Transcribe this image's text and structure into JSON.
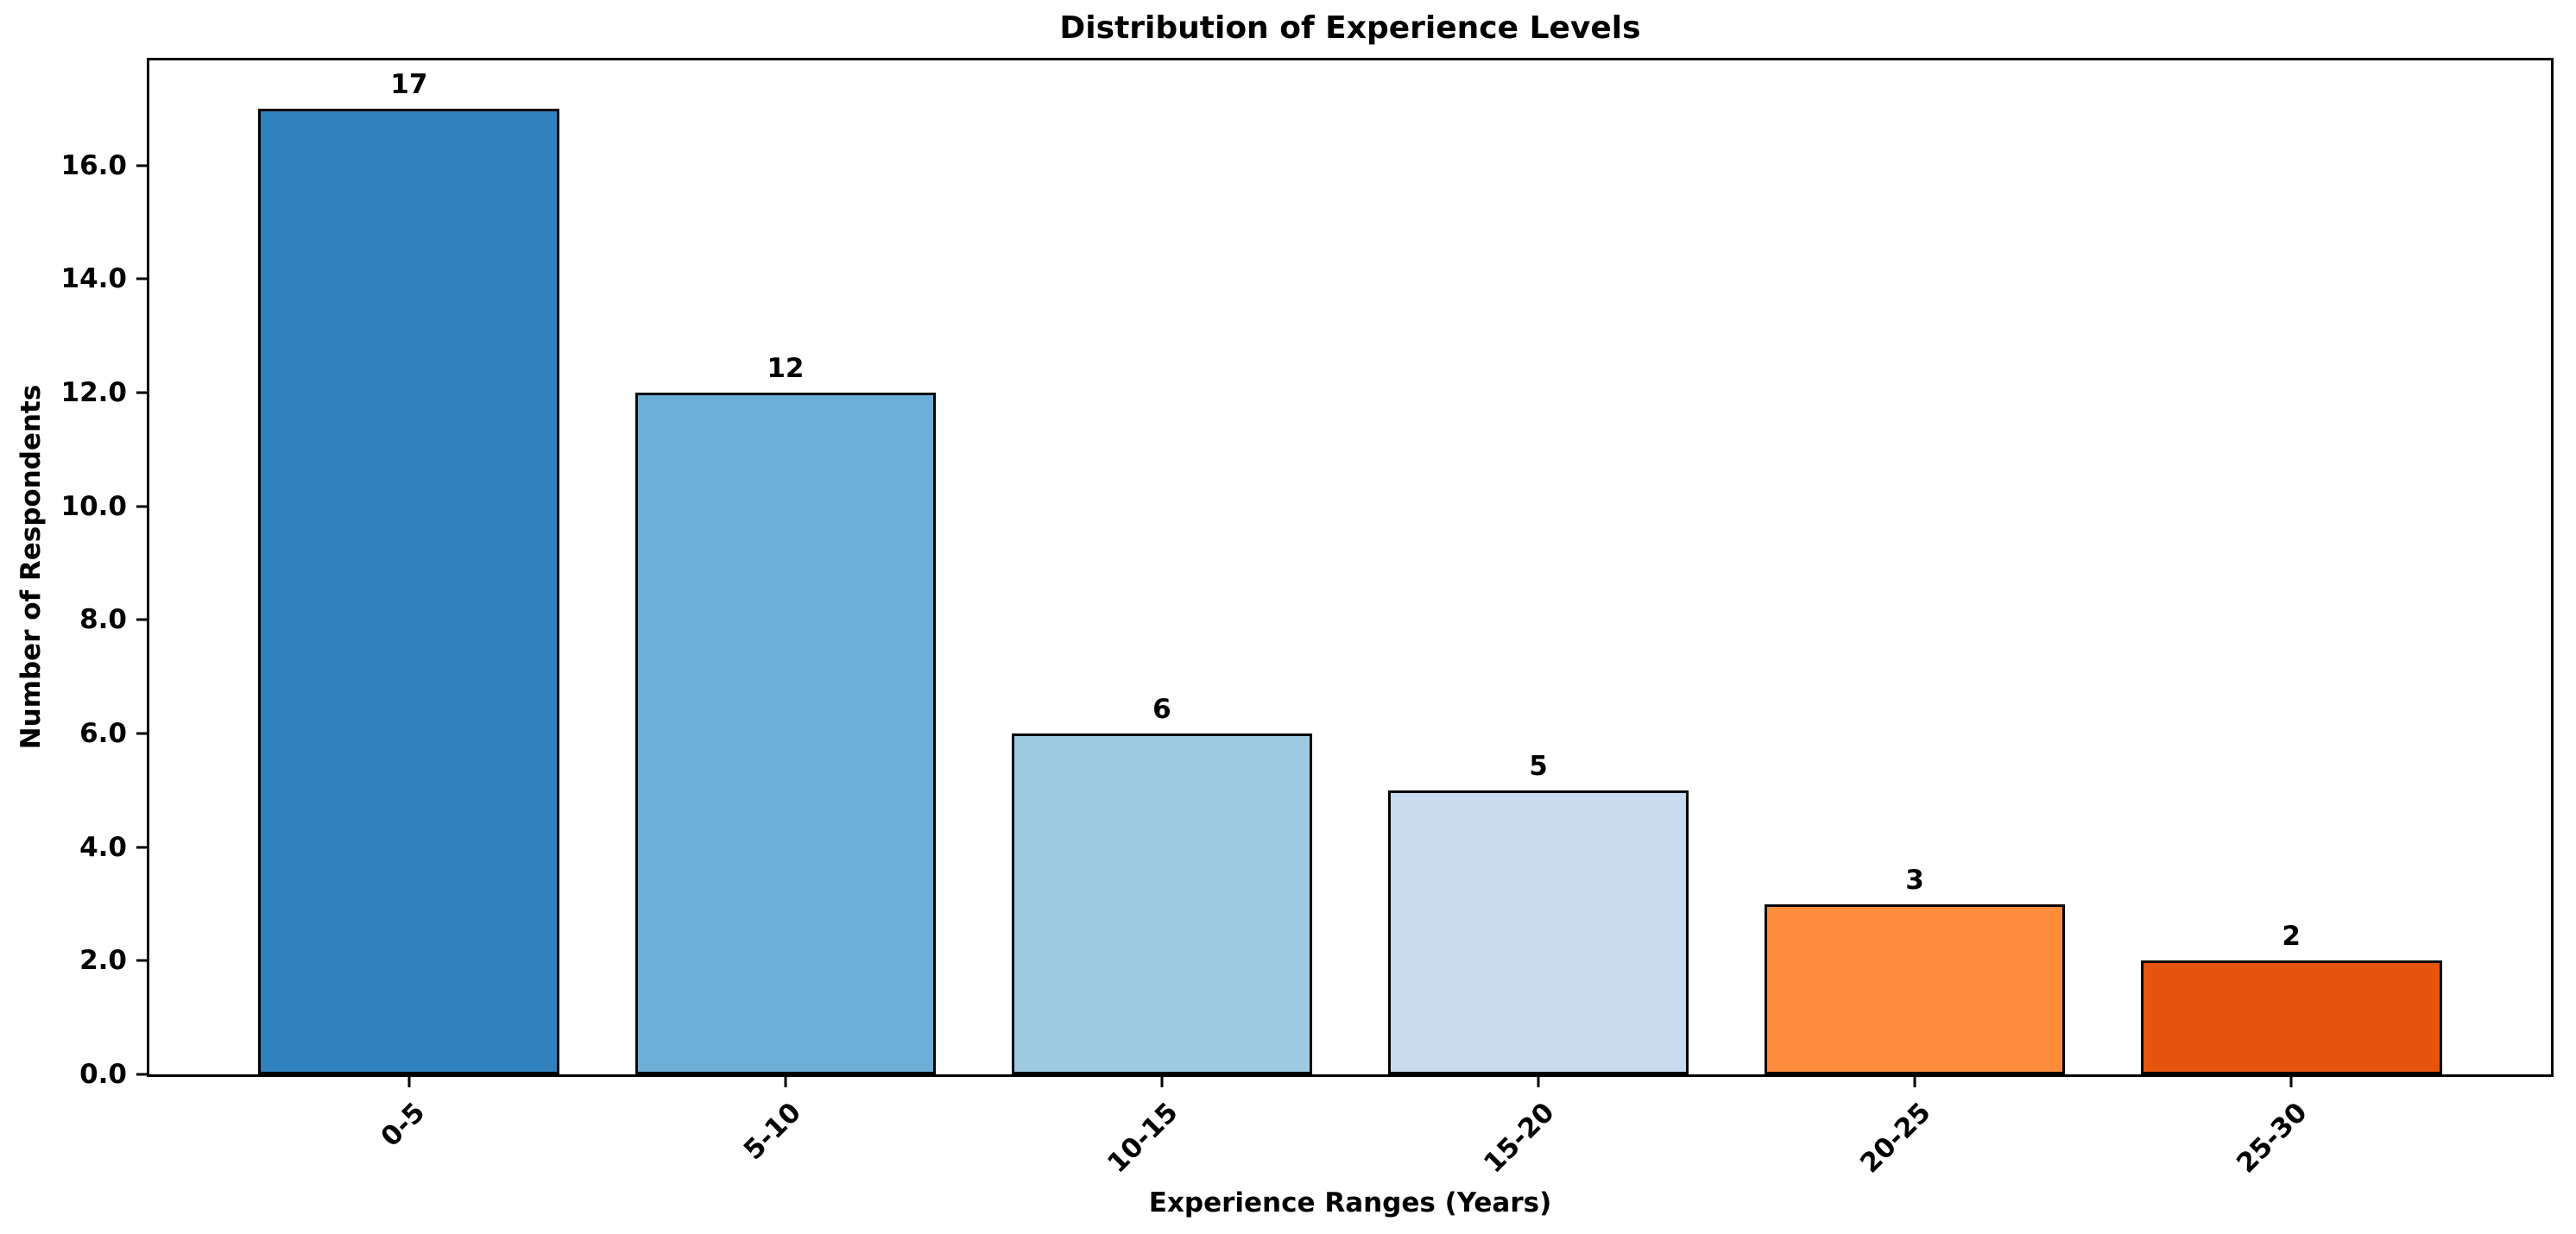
{
  "chart_data": {
    "type": "bar",
    "title": "Distribution of Experience Levels",
    "xlabel": "Experience Ranges (Years)",
    "ylabel": "Number of Respondents",
    "categories": [
      "0-5",
      "5-10",
      "10-15",
      "15-20",
      "20-25",
      "25-30"
    ],
    "values": [
      17,
      12,
      6,
      5,
      3,
      2
    ],
    "value_labels": [
      "17",
      "12",
      "6",
      "5",
      "3",
      "2"
    ],
    "bar_colors": [
      "#3182bd",
      "#6baed6",
      "#9ecae1",
      "#c6dbef",
      "#fd8d3c",
      "#e6550d"
    ],
    "bar_edge_color": "#000000",
    "background_color": "#ffffff",
    "text_color": "#000000",
    "yticks": [
      0,
      2,
      4,
      6,
      8,
      10,
      12,
      14,
      16
    ],
    "ytick_labels": [
      "0.0",
      "2.0",
      "4.0",
      "6.0",
      "8.0",
      "10.0",
      "12.0",
      "14.0",
      "16.0"
    ],
    "ylim": [
      0,
      17.85
    ],
    "xlim": [
      -0.69,
      5.69
    ],
    "bar_width": 0.8,
    "xtick_rotation": 45,
    "grid": false,
    "legend": null
  }
}
